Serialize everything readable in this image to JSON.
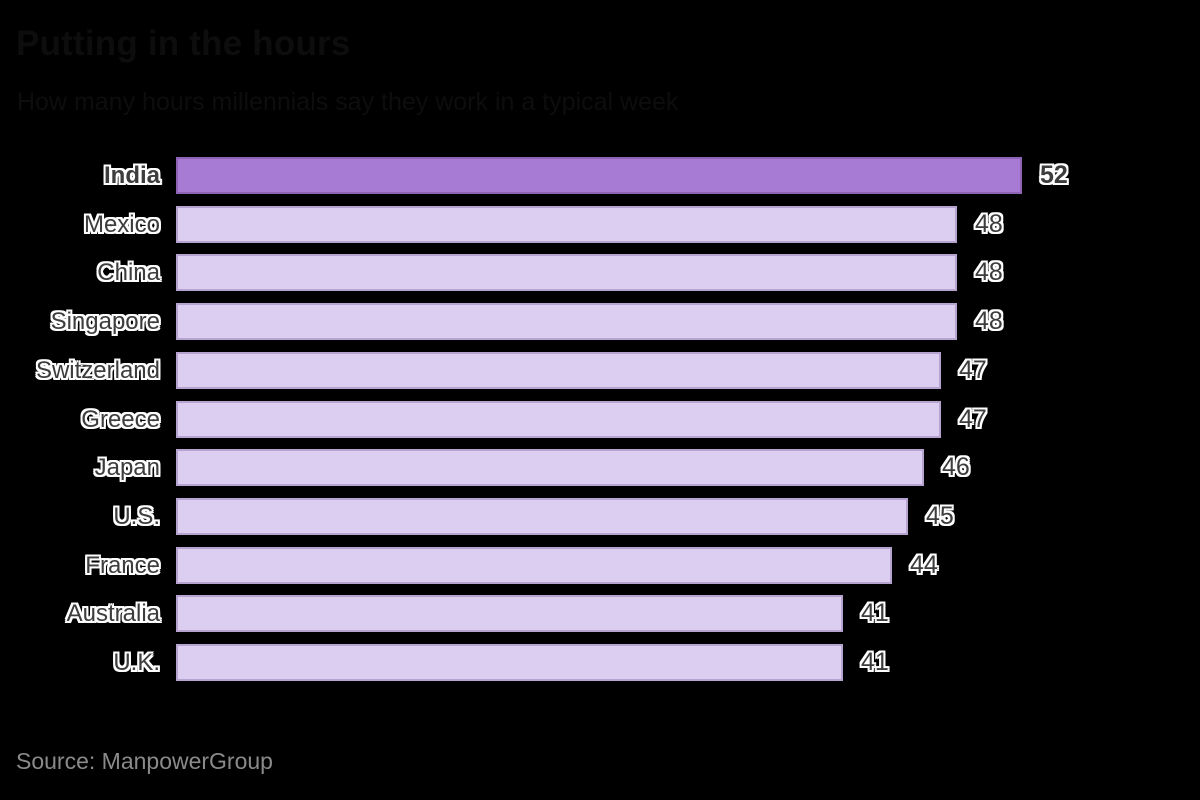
{
  "title": "Putting in the hours",
  "subtitle": "How many hours millennials say they work in a typical week",
  "source": "Source: ManpowerGroup",
  "colors": {
    "background": "#000000",
    "header_text": "#0d0d0d",
    "bar_fill": "#dccef1",
    "bar_border": "#b6a3cf",
    "highlight_fill": "#a77ad3",
    "highlight_border": "#8d64b5",
    "label_text": "#3d3d3d",
    "label_halo": "#ffffff",
    "source_text": "#8a8a8a"
  },
  "chart_data": {
    "type": "bar",
    "orientation": "horizontal",
    "title": "Putting in the hours",
    "subtitle": "How many hours millennials say they work in a typical week",
    "categories": [
      "India",
      "Mexico",
      "China",
      "Singapore",
      "Switzerland",
      "Greece",
      "Japan",
      "U.S.",
      "France",
      "Australia",
      "U.K."
    ],
    "values": [
      52,
      48,
      48,
      48,
      47,
      47,
      46,
      45,
      44,
      41,
      41
    ],
    "value_labels": [
      "52",
      "48",
      "48",
      "48",
      "47",
      "47",
      "46",
      "45",
      "44",
      "41",
      "41"
    ],
    "highlighted_category": "India",
    "xlim": [
      0,
      52
    ],
    "grid": false,
    "legend": false,
    "value_labels_position": "right-of-bar",
    "source": "Source: ManpowerGroup"
  }
}
